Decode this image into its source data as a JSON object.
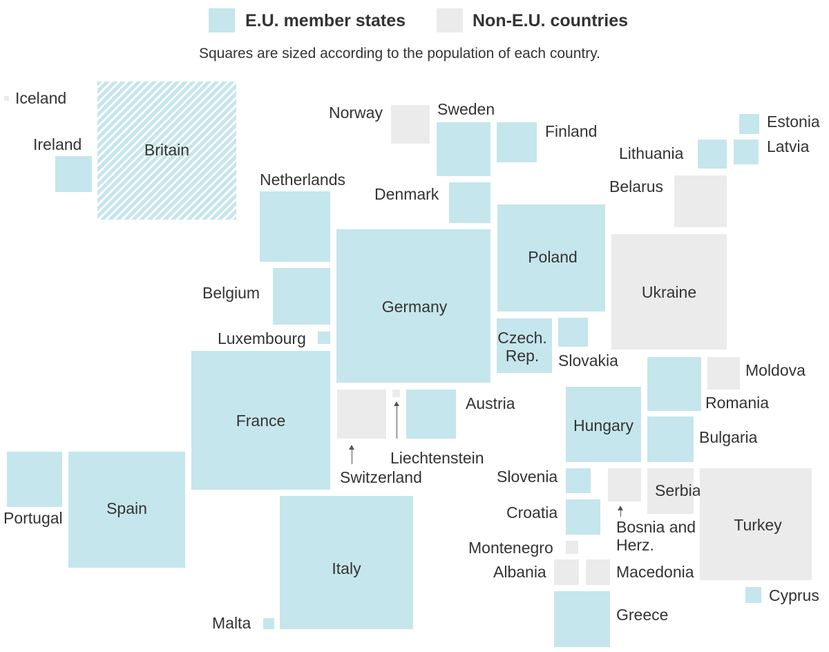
{
  "legend": {
    "eu_label": "E.U. member states",
    "non_eu_label": "Non-E.U. countries",
    "subtitle": "Squares are sized according to the population of each country."
  },
  "colors": {
    "eu": "#c5e6ec",
    "non_eu": "#ebebeb",
    "text": "#333333"
  },
  "countries": [
    {
      "id": "iceland",
      "name": "Iceland",
      "status": "non-eu"
    },
    {
      "id": "ireland",
      "name": "Ireland",
      "status": "eu"
    },
    {
      "id": "britain",
      "name": "Britain",
      "status": "eu-leaving"
    },
    {
      "id": "norway",
      "name": "Norway",
      "status": "non-eu"
    },
    {
      "id": "sweden",
      "name": "Sweden",
      "status": "eu"
    },
    {
      "id": "finland",
      "name": "Finland",
      "status": "eu"
    },
    {
      "id": "estonia",
      "name": "Estonia",
      "status": "eu"
    },
    {
      "id": "latvia",
      "name": "Latvia",
      "status": "eu"
    },
    {
      "id": "lithuania",
      "name": "Lithuania",
      "status": "eu"
    },
    {
      "id": "denmark",
      "name": "Denmark",
      "status": "eu"
    },
    {
      "id": "netherlands",
      "name": "Netherlands",
      "status": "eu"
    },
    {
      "id": "belarus",
      "name": "Belarus",
      "status": "non-eu"
    },
    {
      "id": "poland",
      "name": "Poland",
      "status": "eu"
    },
    {
      "id": "ukraine",
      "name": "Ukraine",
      "status": "non-eu"
    },
    {
      "id": "belgium",
      "name": "Belgium",
      "status": "eu"
    },
    {
      "id": "germany",
      "name": "Germany",
      "status": "eu"
    },
    {
      "id": "luxembourg",
      "name": "Luxembourg",
      "status": "eu"
    },
    {
      "id": "czech",
      "name": "Czech. Rep.",
      "status": "eu"
    },
    {
      "id": "slovakia",
      "name": "Slovakia",
      "status": "eu"
    },
    {
      "id": "moldova",
      "name": "Moldova",
      "status": "non-eu"
    },
    {
      "id": "romania",
      "name": "Romania",
      "status": "eu"
    },
    {
      "id": "france",
      "name": "France",
      "status": "eu"
    },
    {
      "id": "switzerland",
      "name": "Switzerland",
      "status": "non-eu"
    },
    {
      "id": "liechtenstein",
      "name": "Liechtenstein",
      "status": "non-eu"
    },
    {
      "id": "austria",
      "name": "Austria",
      "status": "eu"
    },
    {
      "id": "hungary",
      "name": "Hungary",
      "status": "eu"
    },
    {
      "id": "bulgaria",
      "name": "Bulgaria",
      "status": "eu"
    },
    {
      "id": "portugal",
      "name": "Portugal",
      "status": "eu"
    },
    {
      "id": "spain",
      "name": "Spain",
      "status": "eu"
    },
    {
      "id": "slovenia",
      "name": "Slovenia",
      "status": "eu"
    },
    {
      "id": "serbia",
      "name": "Serbia",
      "status": "non-eu"
    },
    {
      "id": "turkey",
      "name": "Turkey",
      "status": "non-eu"
    },
    {
      "id": "croatia",
      "name": "Croatia",
      "status": "eu"
    },
    {
      "id": "bosnia",
      "name": "Bosnia and Herz.",
      "status": "non-eu"
    },
    {
      "id": "italy",
      "name": "Italy",
      "status": "eu"
    },
    {
      "id": "montenegro",
      "name": "Montenegro",
      "status": "non-eu"
    },
    {
      "id": "albania",
      "name": "Albania",
      "status": "non-eu"
    },
    {
      "id": "macedonia",
      "name": "Macedonia",
      "status": "non-eu"
    },
    {
      "id": "cyprus",
      "name": "Cyprus",
      "status": "eu"
    },
    {
      "id": "malta",
      "name": "Malta",
      "status": "eu"
    },
    {
      "id": "greece",
      "name": "Greece",
      "status": "eu"
    }
  ]
}
